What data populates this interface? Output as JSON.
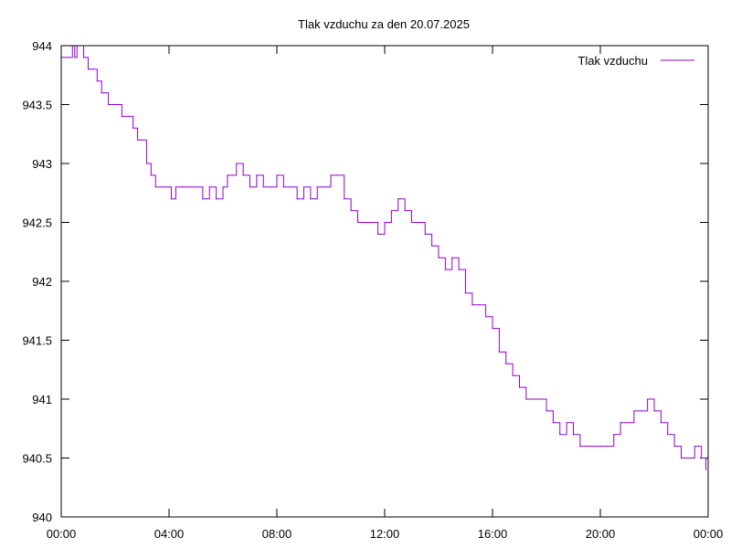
{
  "chart_data": {
    "type": "line",
    "title": "Tlak vzduchu za den 20.07.2025",
    "xlabel": "",
    "ylabel": "",
    "xlim": [
      "00:00",
      "24:00"
    ],
    "ylim": [
      940,
      944
    ],
    "grid": false,
    "legend_position": "top-right",
    "x_ticks": [
      {
        "value": 0,
        "label": "00:00"
      },
      {
        "value": 4,
        "label": "04:00"
      },
      {
        "value": 8,
        "label": "08:00"
      },
      {
        "value": 12,
        "label": "12:00"
      },
      {
        "value": 16,
        "label": "16:00"
      },
      {
        "value": 20,
        "label": "20:00"
      },
      {
        "value": 24,
        "label": "00:00"
      }
    ],
    "y_ticks": [
      {
        "value": 940,
        "label": "940"
      },
      {
        "value": 940.5,
        "label": "940.5"
      },
      {
        "value": 941,
        "label": "941"
      },
      {
        "value": 941.5,
        "label": "941.5"
      },
      {
        "value": 942,
        "label": "942"
      },
      {
        "value": 942.5,
        "label": "942.5"
      },
      {
        "value": 943,
        "label": "943"
      },
      {
        "value": 943.5,
        "label": "943.5"
      },
      {
        "value": 944,
        "label": "944"
      }
    ],
    "series": [
      {
        "name": "Tlak vzduchu",
        "color": "#9400d3",
        "x": [
          "00:00",
          "00:15",
          "00:25",
          "00:30",
          "00:35",
          "00:40",
          "00:50",
          "01:00",
          "01:10",
          "01:20",
          "01:30",
          "01:35",
          "01:45",
          "01:55",
          "02:05",
          "02:15",
          "02:30",
          "02:40",
          "02:50",
          "03:00",
          "03:10",
          "03:20",
          "03:30",
          "03:40",
          "03:50",
          "04:00",
          "04:05",
          "04:15",
          "04:30",
          "04:45",
          "05:00",
          "05:15",
          "05:30",
          "05:45",
          "06:00",
          "06:10",
          "06:20",
          "06:30",
          "06:45",
          "07:00",
          "07:15",
          "07:30",
          "07:45",
          "08:00",
          "08:15",
          "08:30",
          "08:45",
          "09:00",
          "09:15",
          "09:30",
          "09:45",
          "10:00",
          "10:15",
          "10:30",
          "10:45",
          "11:00",
          "11:15",
          "11:30",
          "11:45",
          "12:00",
          "12:15",
          "12:30",
          "12:45",
          "13:00",
          "13:15",
          "13:30",
          "13:45",
          "14:00",
          "14:15",
          "14:30",
          "14:45",
          "15:00",
          "15:15",
          "15:30",
          "15:45",
          "16:00",
          "16:15",
          "16:30",
          "16:45",
          "17:00",
          "17:15",
          "17:30",
          "17:45",
          "18:00",
          "18:15",
          "18:30",
          "18:45",
          "19:00",
          "19:15",
          "19:30",
          "19:45",
          "20:00",
          "20:15",
          "20:30",
          "20:45",
          "21:00",
          "21:15",
          "21:30",
          "21:45",
          "22:00",
          "22:15",
          "22:30",
          "22:45",
          "23:00",
          "23:15",
          "23:30",
          "23:45",
          "23:55"
        ],
        "values": [
          943.9,
          943.9,
          944.0,
          943.9,
          944.0,
          944.0,
          943.9,
          943.8,
          943.8,
          943.7,
          943.6,
          943.6,
          943.5,
          943.5,
          943.5,
          943.4,
          943.4,
          943.3,
          943.2,
          943.2,
          943.0,
          942.9,
          942.8,
          942.8,
          942.8,
          942.8,
          942.7,
          942.8,
          942.8,
          942.8,
          942.8,
          942.7,
          942.8,
          942.7,
          942.8,
          942.9,
          942.9,
          943.0,
          942.9,
          942.8,
          942.9,
          942.8,
          942.8,
          942.9,
          942.8,
          942.8,
          942.7,
          942.8,
          942.7,
          942.8,
          942.8,
          942.9,
          942.9,
          942.7,
          942.6,
          942.5,
          942.5,
          942.5,
          942.4,
          942.5,
          942.6,
          942.7,
          942.6,
          942.5,
          942.5,
          942.4,
          942.3,
          942.2,
          942.1,
          942.2,
          942.1,
          941.9,
          941.8,
          941.8,
          941.7,
          941.6,
          941.4,
          941.3,
          941.2,
          941.1,
          941.0,
          941.0,
          941.0,
          940.9,
          940.8,
          940.7,
          940.8,
          940.7,
          940.6,
          940.6,
          940.6,
          940.6,
          940.6,
          940.7,
          940.8,
          940.8,
          940.9,
          940.9,
          941.0,
          940.9,
          940.8,
          940.7,
          940.6,
          940.5,
          940.5,
          940.6,
          940.5,
          940.4
        ]
      }
    ]
  }
}
